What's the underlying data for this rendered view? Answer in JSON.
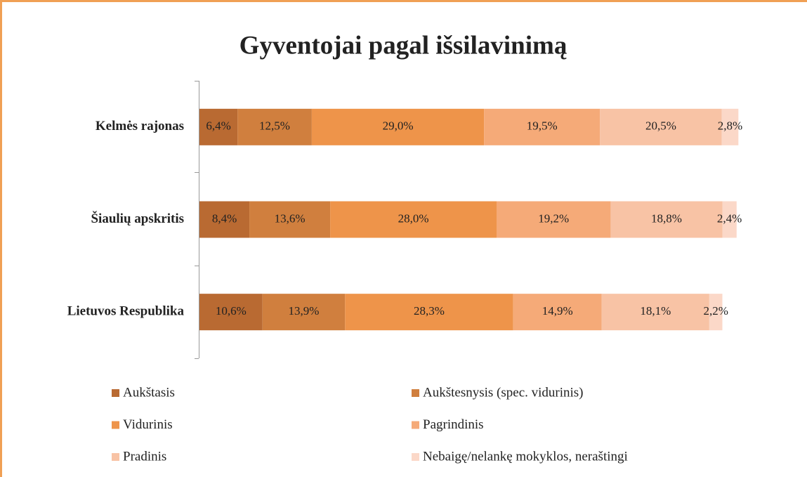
{
  "chart_data": {
    "type": "stacked-bar-horizontal",
    "title": "Gyventojai pagal išsilavinimą",
    "categories": [
      "Kelmės rajonas",
      "Šiaulių apskritis",
      "Lietuvos Respublika"
    ],
    "xlim": [
      0,
      100
    ],
    "series": [
      {
        "name": "Aukštasis",
        "color": "#b96a32",
        "values": [
          6.4,
          8.4,
          10.6
        ],
        "value_labels": [
          "6,4%",
          "8,4%",
          "10,6%"
        ]
      },
      {
        "name": "Aukštesnysis (spec. vidurinis)",
        "color": "#d07f3e",
        "values": [
          12.5,
          13.6,
          13.9
        ],
        "value_labels": [
          "12,5%",
          "13,6%",
          "13,9%"
        ]
      },
      {
        "name": "Vidurinis",
        "color": "#ee944a",
        "values": [
          29.0,
          28.0,
          28.3
        ],
        "value_labels": [
          "29,0%",
          "28,0%",
          "28,3%"
        ]
      },
      {
        "name": "Pagrindinis",
        "color": "#f5aa78",
        "values": [
          19.5,
          19.2,
          14.9
        ],
        "value_labels": [
          "19,5%",
          "19,2%",
          "14,9%"
        ]
      },
      {
        "name": "Pradinis",
        "color": "#f8c3a5",
        "values": [
          20.5,
          18.8,
          18.1
        ],
        "value_labels": [
          "20,5%",
          "18,8%",
          "18,1%"
        ]
      },
      {
        "name": "Nebaigę/nelankę mokyklos, neraštingi",
        "color": "#fbd8c8",
        "values": [
          2.8,
          2.4,
          2.2
        ],
        "value_labels": [
          "2,8%",
          "2,4%",
          "2,2%"
        ]
      }
    ],
    "legend": "bottom"
  }
}
